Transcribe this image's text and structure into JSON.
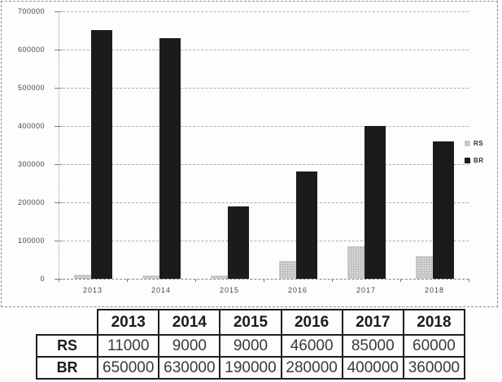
{
  "chart_data": {
    "type": "bar",
    "title": "",
    "xlabel": "",
    "ylabel": "",
    "categories": [
      "2013",
      "2014",
      "2015",
      "2016",
      "2017",
      "2018"
    ],
    "series": [
      {
        "name": "RS",
        "color": "#cfcfcf",
        "values": [
          11000,
          9000,
          9000,
          46000,
          85000,
          60000
        ]
      },
      {
        "name": "BR",
        "color": "#1b1b1b",
        "values": [
          650000,
          630000,
          190000,
          280000,
          400000,
          360000
        ]
      }
    ],
    "ylim": [
      0,
      700000
    ],
    "ytick_step": 100000,
    "ytick_labels": [
      "0",
      "100000",
      "200000",
      "300000",
      "400000",
      "500000",
      "600000",
      "700000"
    ],
    "grid": true,
    "legend_position": "right",
    "legend_labels": [
      "RS",
      "BR"
    ]
  },
  "table": {
    "columns": [
      "2013",
      "2014",
      "2015",
      "2016",
      "2017",
      "2018"
    ],
    "rows": [
      {
        "label": "RS",
        "values": [
          "11000",
          "9000",
          "9000",
          "46000",
          "85000",
          "60000"
        ]
      },
      {
        "label": "BR",
        "values": [
          "650000",
          "630000",
          "190000",
          "280000",
          "400000",
          "360000"
        ]
      }
    ]
  }
}
